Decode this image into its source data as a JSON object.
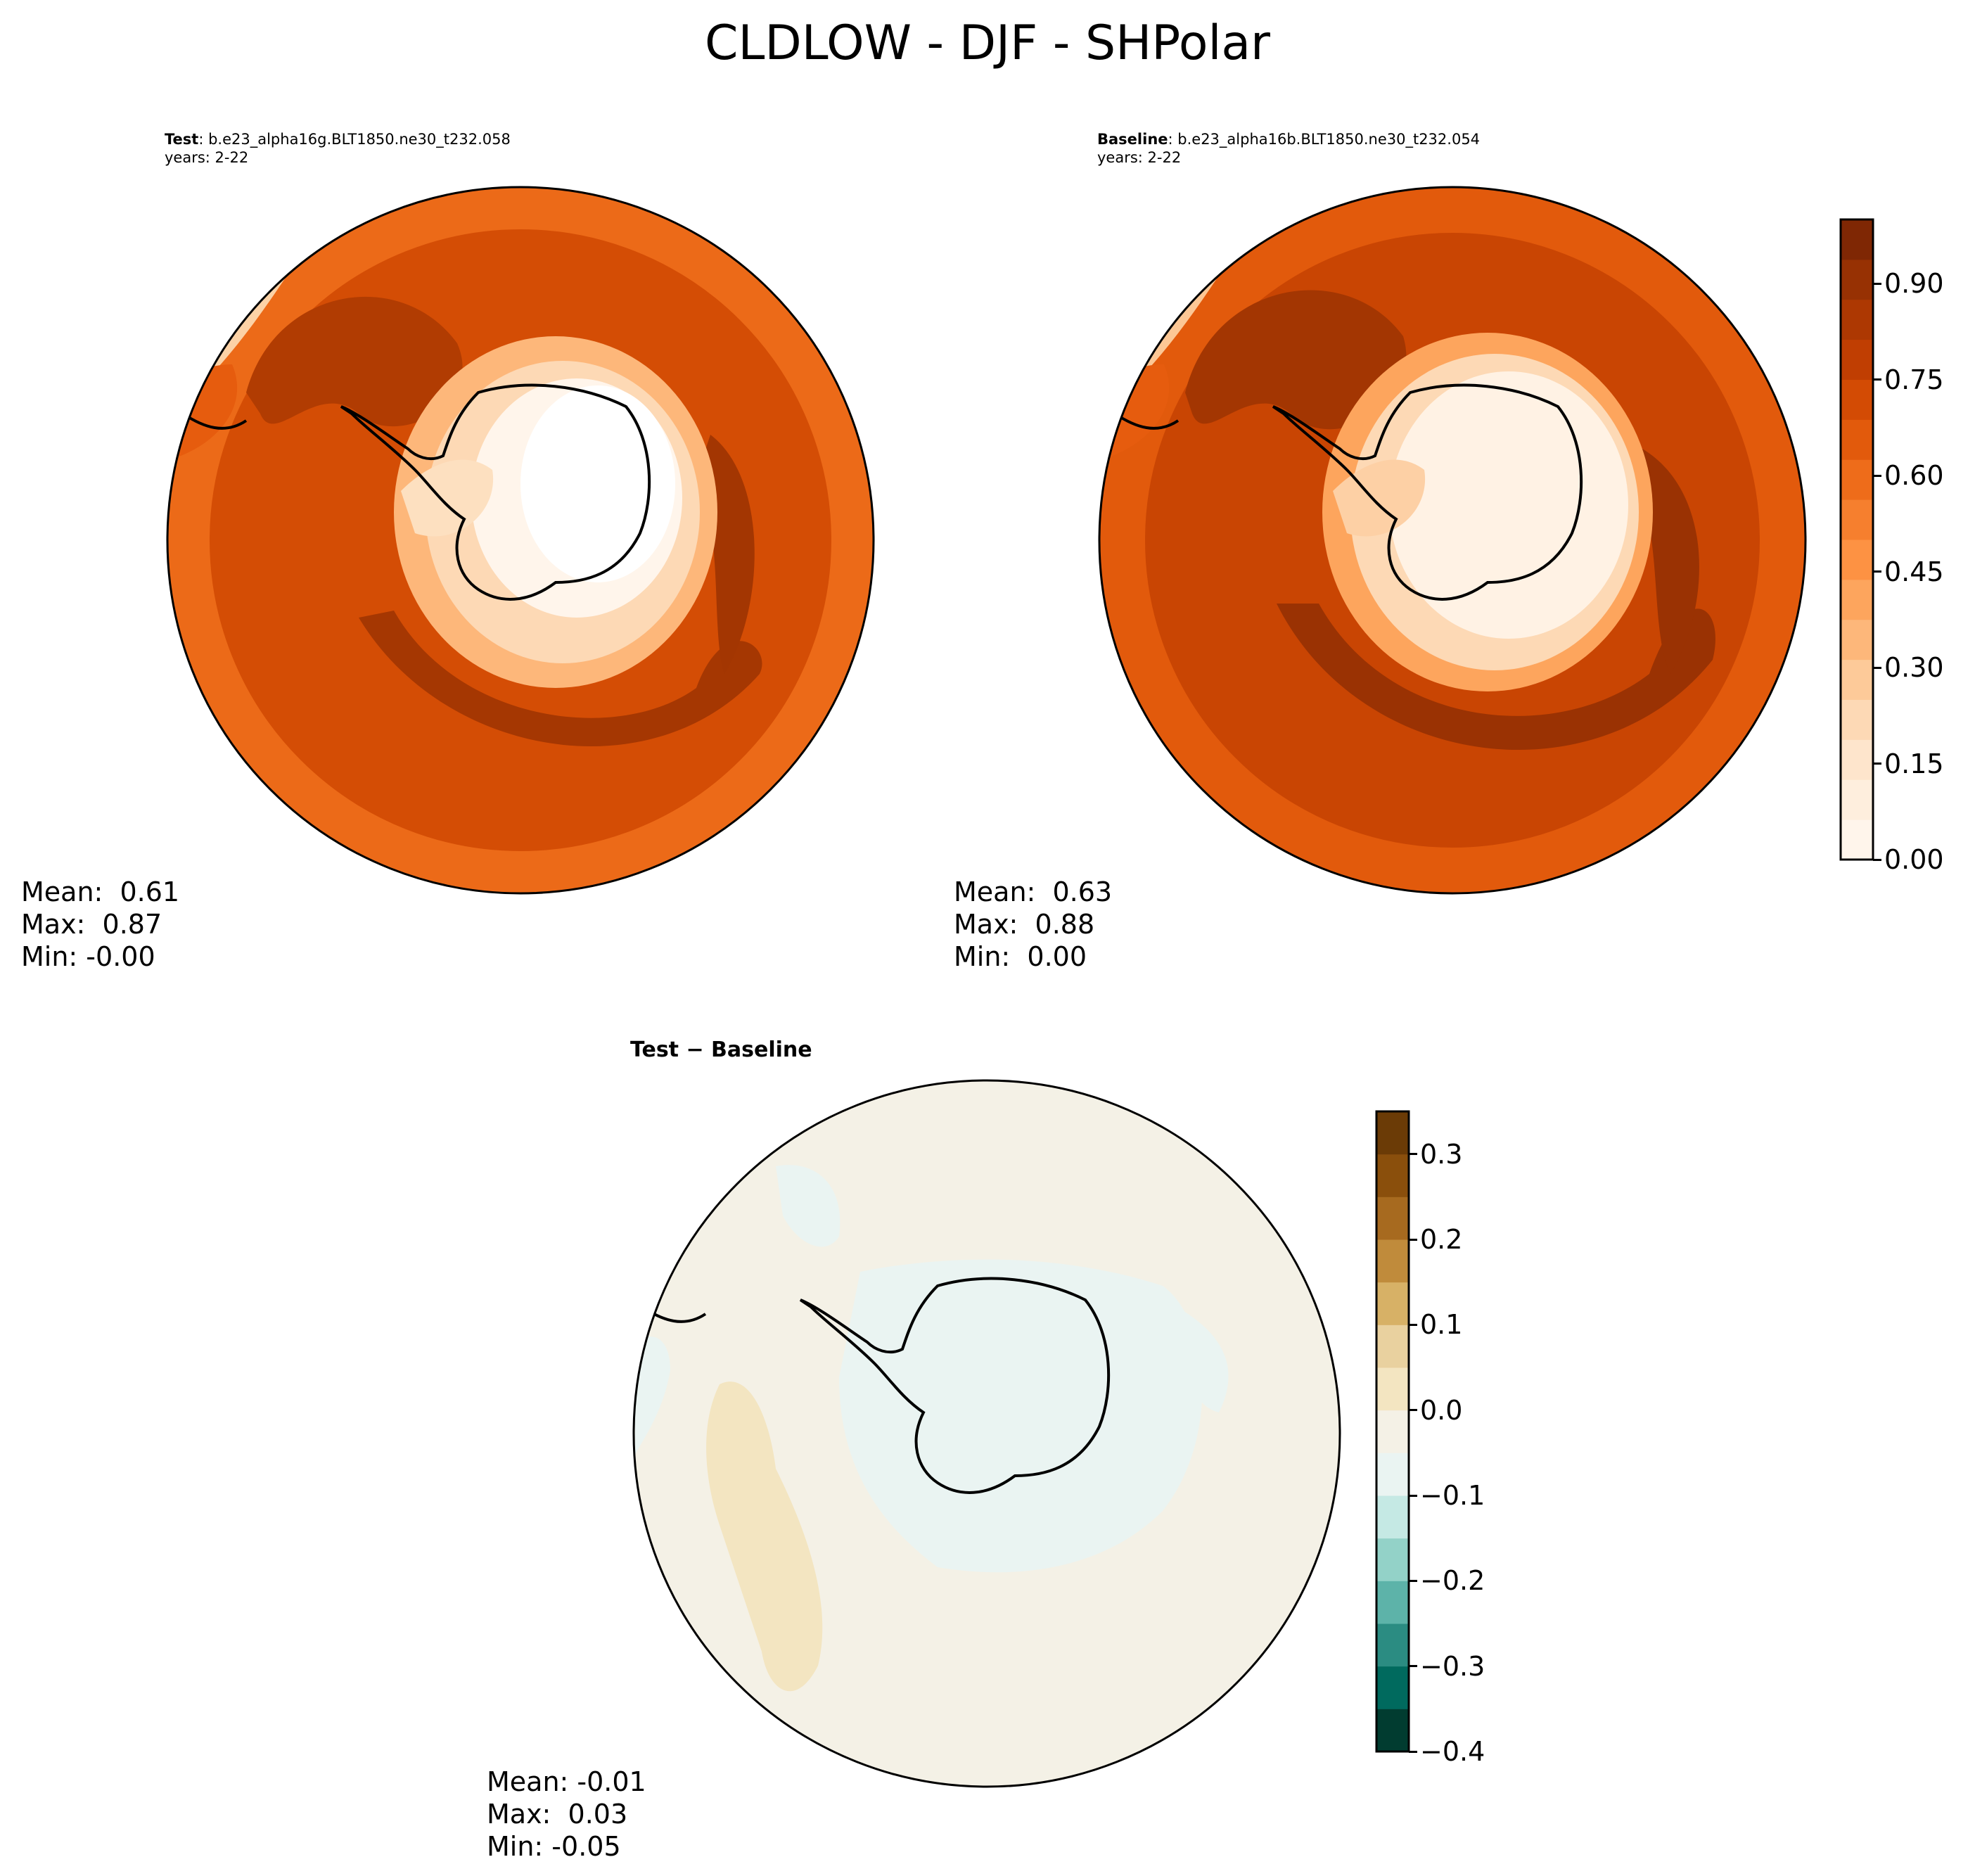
{
  "figure": {
    "title": "CLDLOW - DJF - SHPolar"
  },
  "panels": [
    {
      "id": "test",
      "label_bold": "Test",
      "label_rest": ": b.e23_alpha16g.BLT1850.ne30_t232.058",
      "years": "years: 2-22",
      "stats": {
        "mean": "Mean:  0.61",
        "max": "Max:  0.87",
        "min": "Min: -0.00"
      }
    },
    {
      "id": "baseline",
      "label_bold": "Baseline",
      "label_rest": ": b.e23_alpha16b.BLT1850.ne30_t232.054",
      "years": "years: 2-22",
      "stats": {
        "mean": "Mean:  0.63",
        "max": "Max:  0.88",
        "min": "Min:  0.00"
      }
    },
    {
      "id": "diff",
      "title": "Test − Baseline",
      "stats": {
        "mean": "Mean: -0.01",
        "max": "Max:  0.03",
        "min": "Min: -0.05"
      }
    }
  ],
  "colorbars": {
    "main": {
      "ticks": [
        "0.00",
        "0.15",
        "0.30",
        "0.45",
        "0.60",
        "0.75",
        "0.90"
      ],
      "tick_values": [
        0.0,
        0.15,
        0.3,
        0.45,
        0.6,
        0.75,
        0.9
      ],
      "range": [
        0.0,
        1.0
      ],
      "colors": [
        "#fff5eb",
        "#feeedd",
        "#fee5cc",
        "#fdd9b5",
        "#fdca99",
        "#fdb77a",
        "#fda55d",
        "#fd9243",
        "#f67f2e",
        "#ee6c1a",
        "#e25a0c",
        "#d34b04",
        "#c03e02",
        "#ad3802",
        "#973103",
        "#7f2704"
      ]
    },
    "diff": {
      "ticks": [
        "0.3",
        "0.2",
        "0.1",
        "0.0",
        "−0.1",
        "−0.2",
        "−0.3",
        "−0.4"
      ],
      "tick_values": [
        0.3,
        0.2,
        0.1,
        0.0,
        -0.1,
        -0.2,
        -0.3,
        -0.4
      ],
      "range": [
        -0.4,
        0.35
      ],
      "colors": [
        "#013c30",
        "#006a5e",
        "#2b8c82",
        "#5db3a9",
        "#93d2c8",
        "#c5e9e4",
        "#eaf4f2",
        "#f4f1e6",
        "#f3e5c1",
        "#e9d19f",
        "#d7b166",
        "#c08b3b",
        "#a76a1f",
        "#8a4f0c",
        "#6b3b06"
      ]
    }
  },
  "chart_data": {
    "type": "contour-map",
    "projection": "south-polar-stereographic",
    "variable": "CLDLOW",
    "season": "DJF",
    "region": "SHPolar",
    "panels": [
      {
        "name": "Test",
        "mean": 0.61,
        "max": 0.87,
        "min": -0.0
      },
      {
        "name": "Baseline",
        "mean": 0.63,
        "max": 0.88,
        "min": 0.0
      },
      {
        "name": "Test - Baseline",
        "mean": -0.01,
        "max": 0.03,
        "min": -0.05
      }
    ]
  }
}
